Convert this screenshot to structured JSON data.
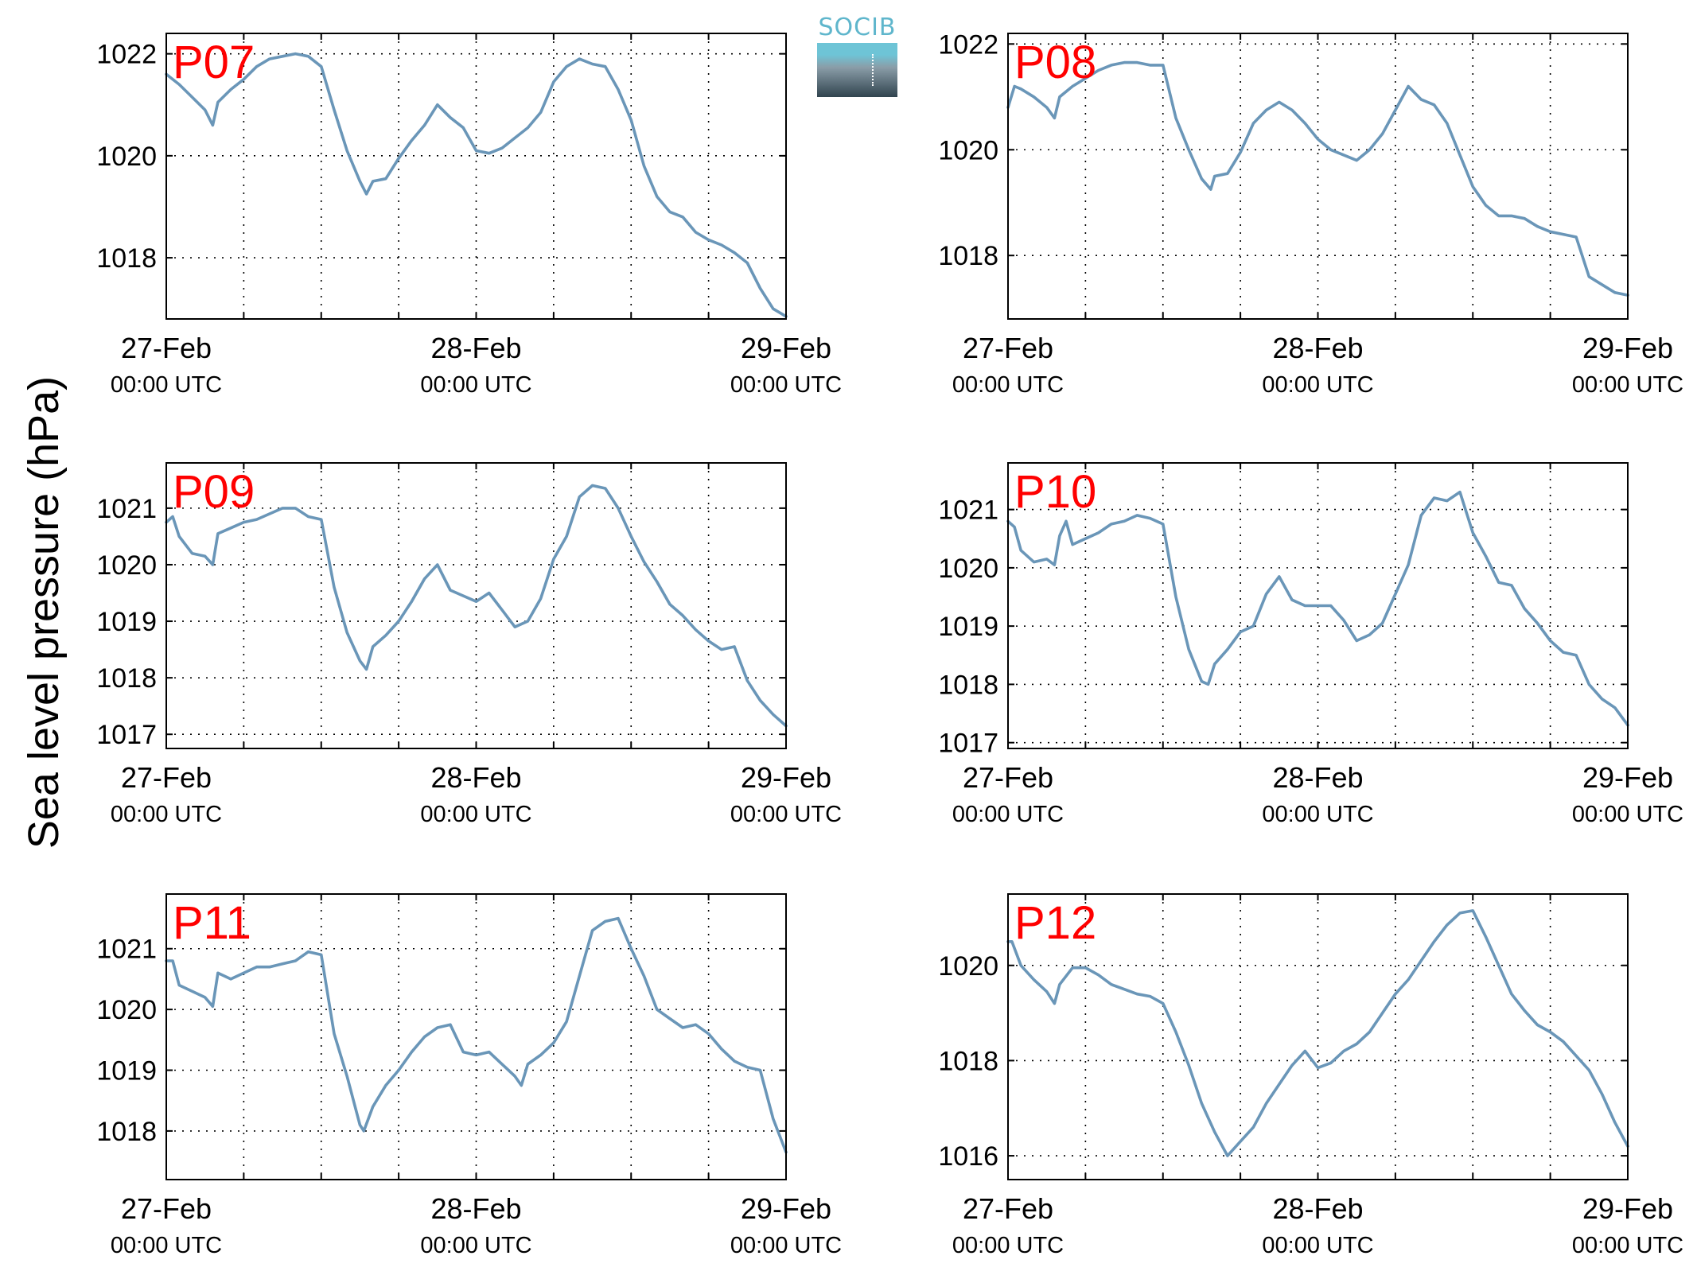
{
  "figure": {
    "ylabel": "Sea level pressure (hPa)",
    "logo_text": "SOCIB",
    "colors": {
      "line": "#6a96b8",
      "panel_label": "#ff0000",
      "axes": "#000000",
      "grid": "#000000"
    }
  },
  "chart_data": [
    {
      "type": "line",
      "title": "P07",
      "xlabel": "",
      "ylabel": "Sea level pressure (hPa)",
      "grid": true,
      "xlim": [
        0,
        48
      ],
      "ylim": [
        1016.8,
        1022.4
      ],
      "xticks": [
        0,
        24,
        48
      ],
      "yticks": [
        1018,
        1020,
        1022
      ],
      "xtick_labels": [
        [
          "27-Feb",
          "00:00 UTC"
        ],
        [
          "28-Feb",
          "00:00 UTC"
        ],
        [
          "29-Feb",
          "00:00 UTC"
        ]
      ],
      "x": [
        0,
        1,
        2,
        3,
        3.6,
        4,
        5,
        6,
        7,
        8,
        9,
        10,
        11,
        12,
        13,
        14,
        15,
        15.5,
        16,
        17,
        18,
        19,
        20,
        21,
        22,
        23,
        24,
        25,
        26,
        27,
        28,
        29,
        30,
        31,
        32,
        33,
        34,
        35,
        36,
        37,
        38,
        39,
        40,
        41,
        42,
        43,
        44,
        45,
        46,
        47,
        48
      ],
      "series": [
        {
          "values": [
            1021.6,
            1021.4,
            1021.15,
            1020.9,
            1020.6,
            1021.05,
            1021.3,
            1021.5,
            1021.75,
            1021.9,
            1021.95,
            1022.0,
            1021.95,
            1021.75,
            1020.9,
            1020.1,
            1019.5,
            1019.25,
            1019.5,
            1019.55,
            1019.95,
            1020.3,
            1020.6,
            1021.0,
            1020.75,
            1020.55,
            1020.1,
            1020.05,
            1020.15,
            1020.35,
            1020.55,
            1020.85,
            1021.45,
            1021.75,
            1021.9,
            1021.8,
            1021.75,
            1021.3,
            1020.7,
            1019.8,
            1019.2,
            1018.9,
            1018.8,
            1018.5,
            1018.35,
            1018.25,
            1018.1,
            1017.9,
            1017.4,
            1017.0,
            1016.85
          ]
        }
      ]
    },
    {
      "type": "line",
      "title": "P08",
      "xlabel": "",
      "ylabel": "Sea level pressure (hPa)",
      "grid": true,
      "xlim": [
        0,
        48
      ],
      "ylim": [
        1016.8,
        1022.2
      ],
      "xticks": [
        0,
        24,
        48
      ],
      "yticks": [
        1018,
        1020,
        1022
      ],
      "xtick_labels": [
        [
          "27-Feb",
          "00:00 UTC"
        ],
        [
          "28-Feb",
          "00:00 UTC"
        ],
        [
          "29-Feb",
          "00:00 UTC"
        ]
      ],
      "x": [
        0,
        0.5,
        1,
        2,
        3,
        3.6,
        4,
        5,
        6,
        7,
        8,
        9,
        10,
        11,
        12,
        13,
        14,
        15,
        15.7,
        16,
        17,
        18,
        19,
        20,
        21,
        22,
        23,
        24,
        25,
        26,
        27,
        28,
        29,
        30,
        31,
        32,
        33,
        34,
        35,
        36,
        37,
        38,
        39,
        40,
        41,
        42,
        43,
        44,
        45,
        46,
        47,
        48
      ],
      "series": [
        {
          "values": [
            1020.8,
            1021.2,
            1021.15,
            1021.0,
            1020.8,
            1020.6,
            1021.0,
            1021.2,
            1021.35,
            1021.5,
            1021.6,
            1021.65,
            1021.65,
            1021.6,
            1021.6,
            1020.6,
            1020.0,
            1019.45,
            1019.25,
            1019.5,
            1019.55,
            1019.95,
            1020.5,
            1020.75,
            1020.9,
            1020.75,
            1020.5,
            1020.2,
            1020.0,
            1019.9,
            1019.8,
            1020.0,
            1020.3,
            1020.75,
            1021.2,
            1020.95,
            1020.85,
            1020.5,
            1019.9,
            1019.3,
            1018.95,
            1018.75,
            1018.75,
            1018.7,
            1018.55,
            1018.45,
            1018.4,
            1018.35,
            1017.6,
            1017.45,
            1017.3,
            1017.25
          ]
        }
      ]
    },
    {
      "type": "line",
      "title": "P09",
      "xlabel": "",
      "ylabel": "Sea level pressure (hPa)",
      "grid": true,
      "xlim": [
        0,
        48
      ],
      "ylim": [
        1016.75,
        1021.8
      ],
      "xticks": [
        0,
        24,
        48
      ],
      "yticks": [
        1017,
        1018,
        1019,
        1020,
        1021
      ],
      "xtick_labels": [
        [
          "27-Feb",
          "00:00 UTC"
        ],
        [
          "28-Feb",
          "00:00 UTC"
        ],
        [
          "29-Feb",
          "00:00 UTC"
        ]
      ],
      "x": [
        0,
        0.5,
        1,
        2,
        3,
        3.6,
        4,
        5,
        6,
        7,
        8,
        9,
        10,
        11,
        12,
        13,
        14,
        15,
        15.5,
        16,
        17,
        18,
        19,
        20,
        21,
        22,
        23,
        24,
        25,
        26,
        27,
        28,
        29,
        30,
        31,
        32,
        33,
        34,
        35,
        36,
        37,
        38,
        39,
        40,
        41,
        42,
        43,
        44,
        45,
        46,
        47,
        48
      ],
      "series": [
        {
          "values": [
            1020.75,
            1020.85,
            1020.5,
            1020.2,
            1020.15,
            1020.0,
            1020.55,
            1020.65,
            1020.75,
            1020.8,
            1020.9,
            1021.0,
            1021.0,
            1020.85,
            1020.8,
            1019.6,
            1018.8,
            1018.3,
            1018.15,
            1018.55,
            1018.75,
            1019.0,
            1019.35,
            1019.75,
            1020.0,
            1019.55,
            1019.45,
            1019.35,
            1019.5,
            1019.2,
            1018.9,
            1019.0,
            1019.4,
            1020.1,
            1020.5,
            1021.2,
            1021.4,
            1021.35,
            1021.0,
            1020.5,
            1020.05,
            1019.7,
            1019.3,
            1019.1,
            1018.85,
            1018.65,
            1018.5,
            1018.55,
            1017.95,
            1017.6,
            1017.35,
            1017.15
          ]
        }
      ]
    },
    {
      "type": "line",
      "title": "P10",
      "xlabel": "",
      "ylabel": "Sea level pressure (hPa)",
      "grid": true,
      "xlim": [
        0,
        48
      ],
      "ylim": [
        1016.9,
        1021.8
      ],
      "xticks": [
        0,
        24,
        48
      ],
      "yticks": [
        1017,
        1018,
        1019,
        1020,
        1021
      ],
      "xtick_labels": [
        [
          "27-Feb",
          "00:00 UTC"
        ],
        [
          "28-Feb",
          "00:00 UTC"
        ],
        [
          "29-Feb",
          "00:00 UTC"
        ]
      ],
      "x": [
        0,
        0.5,
        1,
        2,
        3,
        3.6,
        4,
        4.5,
        5,
        6,
        7,
        8,
        9,
        10,
        11,
        12,
        13,
        14,
        15,
        15.5,
        16,
        17,
        18,
        19,
        20,
        21,
        22,
        23,
        24,
        25,
        26,
        27,
        28,
        29,
        30,
        31,
        32,
        33,
        34,
        35,
        36,
        37,
        38,
        39,
        40,
        41,
        42,
        43,
        44,
        45,
        46,
        47,
        48
      ],
      "series": [
        {
          "values": [
            1020.8,
            1020.7,
            1020.3,
            1020.1,
            1020.15,
            1020.05,
            1020.55,
            1020.8,
            1020.4,
            1020.5,
            1020.6,
            1020.75,
            1020.8,
            1020.9,
            1020.85,
            1020.75,
            1019.5,
            1018.6,
            1018.05,
            1018.0,
            1018.35,
            1018.6,
            1018.9,
            1019.0,
            1019.55,
            1019.85,
            1019.45,
            1019.35,
            1019.35,
            1019.35,
            1019.1,
            1018.75,
            1018.85,
            1019.05,
            1019.55,
            1020.05,
            1020.9,
            1021.2,
            1021.15,
            1021.3,
            1020.6,
            1020.2,
            1019.75,
            1019.7,
            1019.3,
            1019.05,
            1018.75,
            1018.55,
            1018.5,
            1018.0,
            1017.75,
            1017.6,
            1017.3
          ]
        }
      ]
    },
    {
      "type": "line",
      "title": "P11",
      "xlabel": "",
      "ylabel": "Sea level pressure (hPa)",
      "grid": true,
      "xlim": [
        0,
        48
      ],
      "ylim": [
        1017.2,
        1021.9
      ],
      "xticks": [
        0,
        24,
        48
      ],
      "yticks": [
        1018,
        1019,
        1020,
        1021
      ],
      "xtick_labels": [
        [
          "27-Feb",
          "00:00 UTC"
        ],
        [
          "28-Feb",
          "00:00 UTC"
        ],
        [
          "29-Feb",
          "00:00 UTC"
        ]
      ],
      "x": [
        0,
        0.5,
        1,
        2,
        3,
        3.6,
        4,
        5,
        6,
        7,
        8,
        9,
        10,
        11,
        12,
        13,
        14,
        15,
        15.3,
        16,
        17,
        18,
        19,
        20,
        21,
        22,
        23,
        24,
        25,
        26,
        27,
        27.5,
        28,
        29,
        30,
        31,
        32,
        33,
        34,
        35,
        36,
        37,
        38,
        39,
        40,
        41,
        42,
        43,
        44,
        45,
        46,
        47,
        48
      ],
      "series": [
        {
          "values": [
            1020.8,
            1020.8,
            1020.4,
            1020.3,
            1020.2,
            1020.05,
            1020.6,
            1020.5,
            1020.6,
            1020.7,
            1020.7,
            1020.75,
            1020.8,
            1020.95,
            1020.9,
            1019.6,
            1018.9,
            1018.1,
            1018.0,
            1018.4,
            1018.75,
            1019.0,
            1019.3,
            1019.55,
            1019.7,
            1019.75,
            1019.3,
            1019.25,
            1019.3,
            1019.1,
            1018.9,
            1018.75,
            1019.1,
            1019.25,
            1019.45,
            1019.8,
            1020.55,
            1021.3,
            1021.45,
            1021.5,
            1021.0,
            1020.55,
            1020.0,
            1019.85,
            1019.7,
            1019.75,
            1019.6,
            1019.35,
            1019.15,
            1019.05,
            1019.0,
            1018.2,
            1017.65
          ]
        }
      ]
    },
    {
      "type": "line",
      "title": "P12",
      "xlabel": "",
      "ylabel": "Sea level pressure (hPa)",
      "grid": true,
      "xlim": [
        0,
        48
      ],
      "ylim": [
        1015.5,
        1021.5
      ],
      "xticks": [
        0,
        24,
        48
      ],
      "yticks": [
        1016,
        1018,
        1020
      ],
      "xtick_labels": [
        [
          "27-Feb",
          "00:00 UTC"
        ],
        [
          "28-Feb",
          "00:00 UTC"
        ],
        [
          "29-Feb",
          "00:00 UTC"
        ]
      ],
      "x": [
        0,
        0.3,
        1,
        2,
        3,
        3.6,
        4,
        5,
        6,
        7,
        8,
        9,
        10,
        11,
        12,
        13,
        14,
        15,
        16,
        17,
        18,
        19,
        20,
        21,
        22,
        23,
        24,
        25,
        26,
        27,
        28,
        29,
        30,
        31,
        32,
        33,
        34,
        35,
        36,
        37,
        38,
        39,
        40,
        41,
        42,
        43,
        44,
        45,
        46,
        47,
        48
      ],
      "series": [
        {
          "values": [
            1020.5,
            1020.5,
            1020.0,
            1019.7,
            1019.45,
            1019.2,
            1019.6,
            1019.95,
            1019.95,
            1019.8,
            1019.6,
            1019.5,
            1019.4,
            1019.35,
            1019.2,
            1018.6,
            1017.9,
            1017.1,
            1016.5,
            1016.0,
            1016.3,
            1016.6,
            1017.1,
            1017.5,
            1017.9,
            1018.2,
            1017.85,
            1017.95,
            1018.2,
            1018.35,
            1018.6,
            1019.0,
            1019.4,
            1019.7,
            1020.1,
            1020.5,
            1020.85,
            1021.1,
            1021.15,
            1020.6,
            1020.0,
            1019.4,
            1019.05,
            1018.75,
            1018.6,
            1018.4,
            1018.1,
            1017.8,
            1017.3,
            1016.7,
            1016.2
          ]
        }
      ]
    }
  ]
}
